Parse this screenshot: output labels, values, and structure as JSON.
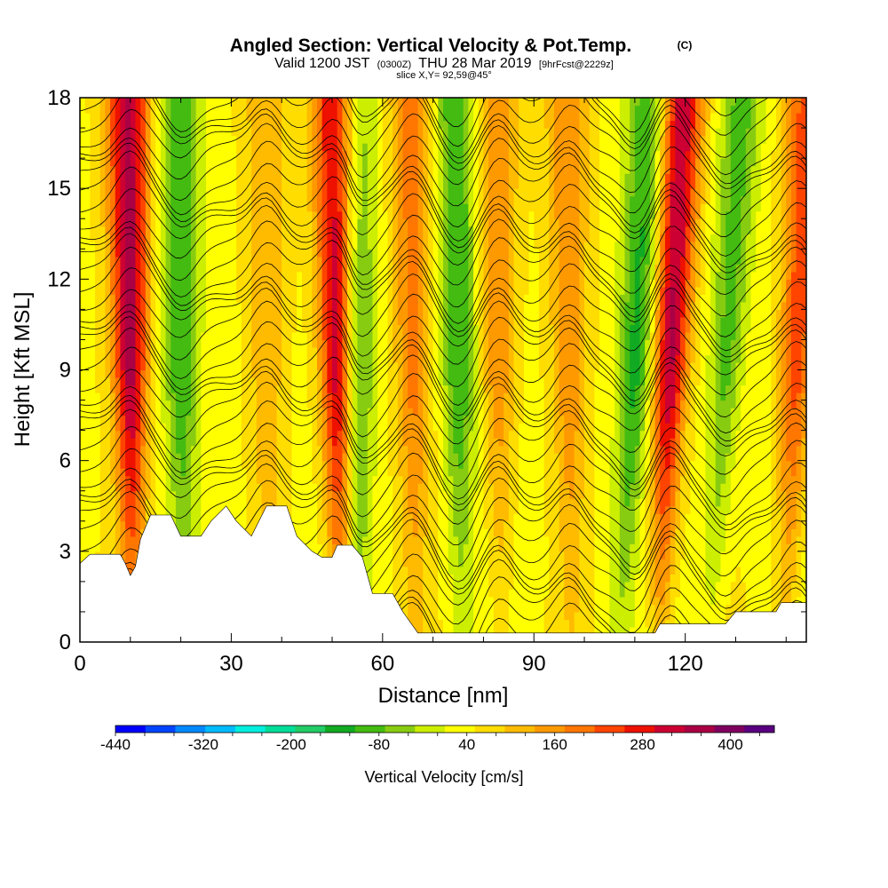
{
  "chart_data": {
    "type": "heatmap",
    "title": "Angled Section: Vertical Velocity & Pot.Temp.",
    "title_note": "(C)",
    "subtitle": {
      "valid": "Valid 1200 JST",
      "utc": "(0300Z)",
      "date": "THU 28 Mar 2019",
      "fcst": "[9hrFcst@2229z]"
    },
    "slice": "slice X,Y= 92,59@45°",
    "xlabel": "Distance [nm]",
    "ylabel": "Height [Kft MSL]",
    "xlim": [
      0,
      144
    ],
    "ylim": [
      0,
      18
    ],
    "x_ticks": [
      0,
      30,
      60,
      90,
      120
    ],
    "x_minor_step": 10,
    "y_ticks": [
      0,
      3,
      6,
      9,
      12,
      15,
      18
    ],
    "y_minor_step": 1,
    "colorbar": {
      "label": "Vertical Velocity [cm/s]",
      "min": -440,
      "max": 460,
      "step": 40,
      "tick_labels": [
        -440,
        -320,
        -200,
        -80,
        40,
        160,
        280,
        400
      ],
      "colors": [
        "#0000ff",
        "#0044ff",
        "#0088ff",
        "#00bbff",
        "#00eedd",
        "#00dd99",
        "#22cc66",
        "#11aa22",
        "#44bb11",
        "#88cc11",
        "#ccee00",
        "#ffff00",
        "#ffdd00",
        "#ffbb00",
        "#ff9900",
        "#ff7700",
        "#ff4400",
        "#ee1100",
        "#cc0033",
        "#aa0044",
        "#800060",
        "#5a0080"
      ]
    },
    "series": [
      {
        "name": "Vertical Velocity",
        "kind": "filled",
        "positive_bands": [
          {
            "x": 10,
            "peak": 300
          },
          {
            "x": 37,
            "peak": 80
          },
          {
            "x": 51,
            "peak": 300
          },
          {
            "x": 66,
            "peak": 140
          },
          {
            "x": 83,
            "peak": 130
          },
          {
            "x": 97,
            "peak": 120
          },
          {
            "x": 117,
            "peak": 300
          },
          {
            "x": 142,
            "peak": 200
          }
        ],
        "negative_bands": [
          {
            "x": 20,
            "peak": -140
          },
          {
            "x": 55,
            "peak": -140
          },
          {
            "x": 75,
            "peak": -150
          },
          {
            "x": 110,
            "peak": -160
          },
          {
            "x": 128,
            "peak": -130
          }
        ]
      },
      {
        "name": "Pot.Temp.",
        "kind": "contour",
        "interval": 1,
        "min": 5,
        "max": 45
      }
    ],
    "terrain_kft": [
      {
        "x": 0,
        "z": 2.6
      },
      {
        "x": 2,
        "z": 2.9
      },
      {
        "x": 8,
        "z": 2.9
      },
      {
        "x": 9,
        "z": 2.6
      },
      {
        "x": 10,
        "z": 2.2
      },
      {
        "x": 11,
        "z": 2.5
      },
      {
        "x": 12,
        "z": 3.4
      },
      {
        "x": 14,
        "z": 4.2
      },
      {
        "x": 18,
        "z": 4.2
      },
      {
        "x": 20,
        "z": 3.5
      },
      {
        "x": 24,
        "z": 3.5
      },
      {
        "x": 26,
        "z": 4.0
      },
      {
        "x": 29,
        "z": 4.5
      },
      {
        "x": 31,
        "z": 4.0
      },
      {
        "x": 34,
        "z": 3.5
      },
      {
        "x": 37,
        "z": 4.5
      },
      {
        "x": 41,
        "z": 4.5
      },
      {
        "x": 43,
        "z": 3.5
      },
      {
        "x": 46,
        "z": 3.0
      },
      {
        "x": 48,
        "z": 2.8
      },
      {
        "x": 50,
        "z": 2.8
      },
      {
        "x": 51,
        "z": 3.2
      },
      {
        "x": 54,
        "z": 3.2
      },
      {
        "x": 56,
        "z": 2.8
      },
      {
        "x": 58,
        "z": 1.6
      },
      {
        "x": 62,
        "z": 1.6
      },
      {
        "x": 64,
        "z": 1.0
      },
      {
        "x": 67,
        "z": 0.3
      },
      {
        "x": 114,
        "z": 0.3
      },
      {
        "x": 115,
        "z": 0.6
      },
      {
        "x": 128,
        "z": 0.6
      },
      {
        "x": 130,
        "z": 1.0
      },
      {
        "x": 138,
        "z": 1.0
      },
      {
        "x": 139,
        "z": 1.3
      },
      {
        "x": 144,
        "z": 1.3
      }
    ]
  }
}
